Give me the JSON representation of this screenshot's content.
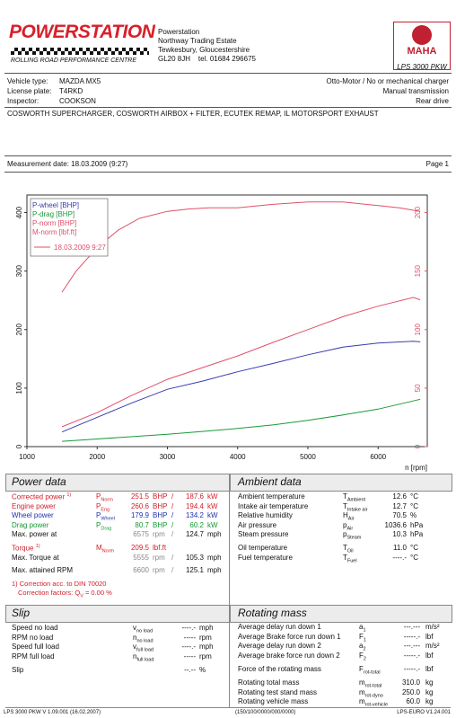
{
  "header": {
    "brand": "POWERSTATION",
    "brand_sub": "ROLLING ROAD PERFORMANCE CENTRE",
    "address": [
      "Powerstation",
      "Northway Trading Estate",
      "Tewkesbury, Gloucestershire"
    ],
    "postcode": "GL20 8JH",
    "tel": "tel. 01684 296675",
    "maha_logo_text": "MAHA",
    "maha_model": "LPS 3000 PKW"
  },
  "vehicle": {
    "type_label": "Vehicle type:",
    "type_value": "MAZDA MX5",
    "plate_label": "License plate:",
    "plate_value": "T4RKD",
    "inspector_label": "Inspector:",
    "inspector_value": "COOKSON",
    "engine": "Otto-Motor / No or mechanical charger",
    "transmission": "Manual transmission",
    "drive": "Rear drive"
  },
  "description": "COSWORTH SUPERCHARGER, COSWORTH AIRBOX + FILTER, ECUTEK REMAP, IL MOTORSPORT EXHAUST",
  "measurement": {
    "date_label": "Measurement date: 18.03.2009 (9:27)",
    "page": "Page 1"
  },
  "chart_data": {
    "type": "line",
    "x_label": "n [rpm]",
    "xlim": [
      1000,
      6700
    ],
    "x_ticks": [
      "1000",
      "2000",
      "3000",
      "4000",
      "5000",
      "6000"
    ],
    "left_axis": {
      "ylim": [
        0,
        430
      ],
      "ticks": [
        "0",
        "100",
        "200",
        "300",
        "400"
      ]
    },
    "right_axis": {
      "ylim": [
        0,
        215
      ],
      "ticks": [
        "0",
        "50",
        "100",
        "150",
        "200"
      ]
    },
    "legend": [
      "P-wheel [BHP]",
      "P-drag [BHP]",
      "P-norm [BHP]",
      "M-norm [lbf.ft]",
      "18.03.2009 9:27"
    ],
    "series": [
      {
        "name": "P-wheel [BHP]",
        "color": "#3a3ab0",
        "axis": "left",
        "x": [
          1500,
          2000,
          2500,
          3000,
          3500,
          4000,
          4500,
          5000,
          5500,
          6000,
          6500,
          6600
        ],
        "y": [
          25,
          50,
          75,
          98,
          112,
          128,
          142,
          157,
          170,
          177,
          180,
          179
        ]
      },
      {
        "name": "P-drag [BHP]",
        "color": "#1a9a3a",
        "axis": "left",
        "x": [
          1500,
          2000,
          2500,
          3000,
          3500,
          4000,
          4500,
          5000,
          5500,
          6000,
          6600
        ],
        "y": [
          9,
          13,
          17,
          21,
          26,
          31,
          37,
          45,
          54,
          64,
          81
        ]
      },
      {
        "name": "P-norm [BHP]",
        "color": "#e0506a",
        "axis": "left",
        "x": [
          1500,
          2000,
          2500,
          3000,
          3500,
          4000,
          4500,
          5000,
          5500,
          6000,
          6500,
          6600
        ],
        "y": [
          34,
          58,
          88,
          115,
          135,
          155,
          178,
          200,
          222,
          240,
          255,
          251
        ]
      },
      {
        "name": "M-norm [lbf.ft]",
        "color": "#e0506a",
        "axis": "right",
        "x": [
          1500,
          1700,
          2000,
          2300,
          2600,
          3000,
          3300,
          3600,
          4000,
          4500,
          5000,
          5500,
          6000,
          6300,
          6600
        ],
        "y": [
          132,
          150,
          170,
          185,
          195,
          201,
          203,
          204,
          204,
          207,
          209,
          209,
          206,
          204,
          201
        ]
      }
    ]
  },
  "power_data": {
    "title": "Power data",
    "rows": [
      {
        "label": "Corrected power",
        "sup": "1)",
        "sym": "P",
        "sub": "Norm",
        "v1": "251.5",
        "u1": "BHP",
        "v2": "187.6",
        "u2": "kW",
        "cls": "red"
      },
      {
        "label": "Engine power",
        "sup": "",
        "sym": "P",
        "sub": "Eng",
        "v1": "260.6",
        "u1": "BHP",
        "v2": "194.4",
        "u2": "kW",
        "cls": "red"
      },
      {
        "label": "Wheel power",
        "sup": "",
        "sym": "P",
        "sub": "Wheel",
        "v1": "179.9",
        "u1": "BHP",
        "v2": "134.2",
        "u2": "kW",
        "cls": "blue"
      },
      {
        "label": "Drag power",
        "sup": "",
        "sym": "P",
        "sub": "Drag",
        "v1": "80.7",
        "u1": "BHP",
        "v2": "60.2",
        "u2": "kW",
        "cls": "green"
      }
    ],
    "max_power_label": "Max. power at",
    "max_power_rpm": "6575",
    "max_power_speed": "124.7",
    "torque_label": "Torque",
    "torque_sup": "1)",
    "torque_sym": "M",
    "torque_sub": "Norm",
    "torque_value": "209.5",
    "torque_unit": "lbf.ft",
    "max_torque_label": "Max. Torque at",
    "max_torque_rpm": "5555",
    "max_torque_speed": "105.3",
    "max_rpm_label": "Max. attained RPM",
    "max_rpm_value": "6600",
    "max_rpm_speed": "125.1",
    "rpm_unit": "rpm",
    "sep": "/",
    "mph": "mph",
    "correction": "1) Correction acc. to DIN 70020",
    "correction_factors": "Correction factors: Q",
    "correction_factors_sub": "V",
    "correction_factors_val": " =   0.00 %"
  },
  "ambient_data": {
    "title": "Ambient data",
    "rows": [
      {
        "label": "Ambient temperature",
        "sym": "T",
        "sub": "Ambient",
        "value": "12.6",
        "unit": "°C"
      },
      {
        "label": "Intake air temperature",
        "sym": "T",
        "sub": "Intake air",
        "value": "12.7",
        "unit": "°C"
      },
      {
        "label": "Relative humidity",
        "sym": "H",
        "sub": "Air",
        "value": "70.5",
        "unit": "%"
      },
      {
        "label": "Air pressure",
        "sym": "p",
        "sub": "Air",
        "value": "1036.6",
        "unit": "hPa"
      },
      {
        "label": "Steam pressure",
        "sym": "p",
        "sub": "Steam",
        "value": "10.3",
        "unit": "hPa"
      }
    ],
    "oil": {
      "label": "Oil temperature",
      "sym": "T",
      "sub": "Oil",
      "value": "11.0",
      "unit": "°C"
    },
    "fuel": {
      "label": "Fuel temperature",
      "sym": "T",
      "sub": "Fuel",
      "value": "----.-",
      "unit": "°C"
    }
  },
  "slip": {
    "title": "Slip",
    "rows": [
      {
        "label": "Speed no load",
        "sym": "v",
        "sub": "no load",
        "value": "----.-",
        "unit": "mph"
      },
      {
        "label": "RPM no load",
        "sym": "n",
        "sub": "no load",
        "value": "-----",
        "unit": "rpm"
      },
      {
        "label": "Speed full load",
        "sym": "v",
        "sub": "full load",
        "value": "----.-",
        "unit": "mph"
      },
      {
        "label": "RPM full load",
        "sym": "n",
        "sub": "full load",
        "value": "-----",
        "unit": "rpm"
      }
    ],
    "slip_label": "Slip",
    "slip_value": "--.--",
    "slip_unit": "%"
  },
  "rotating_mass": {
    "title": "Rotating mass",
    "rows": [
      {
        "label": "Average delay run down 1",
        "sym": "a",
        "sub": "1",
        "value": "---.---",
        "unit": "m/s²"
      },
      {
        "label": "Average Brake force run down 1",
        "sym": "F",
        "sub": "1",
        "value": "-----.-",
        "unit": "lbf"
      },
      {
        "label": "Average delay run down 2",
        "sym": "a",
        "sub": "2",
        "value": "---.---",
        "unit": "m/s²"
      },
      {
        "label": "Average brake force run down 2",
        "sym": "F",
        "sub": "2",
        "value": "-----.-",
        "unit": "lbf"
      }
    ],
    "force": {
      "label": "Force of the rotating mass",
      "sym": "F",
      "sub": "rot-total",
      "value": "-----.-",
      "unit": "lbf"
    },
    "totals": [
      {
        "label": "Rotating total mass",
        "sym": "m",
        "sub": "rot-total",
        "value": "310.0",
        "unit": "kg"
      },
      {
        "label": "Rotating test stand mass",
        "sym": "m",
        "sub": "rot-dyno",
        "value": "250.0",
        "unit": "kg"
      },
      {
        "label": "Rotating vehicle mass",
        "sym": "m",
        "sub": "rot-vehicle",
        "value": "60.0",
        "unit": "kg"
      }
    ]
  },
  "footer": {
    "left": "LPS 3000 PKW V 1.09.001 (16.02.2007)",
    "mid": "(150/100/0000/000/0000)",
    "right": "LPS-EURO V1.24.001"
  }
}
